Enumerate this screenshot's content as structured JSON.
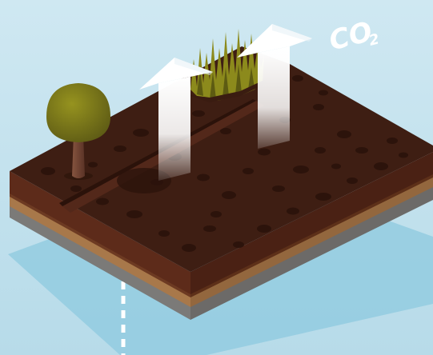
{
  "labels": {
    "co2_main": "CO",
    "co2_subscript": "2"
  },
  "colors": {
    "background_top": "#cde6f1",
    "background_bottom": "#b4d9e8",
    "water_shadow": "#86c4dc",
    "soil_top": "#3f1f14",
    "soil_dark_spots": "#2f150d",
    "soil_side_left": "#5b2a1a",
    "soil_side_right": "#4e2316",
    "sand_layer": "#a7774a",
    "rock_layer": "#7a7876",
    "tree_canopy": "#7c7a1e",
    "tree_trunk": "#6e4334",
    "grass": "#8d8a1c",
    "arrow": "#ffffff"
  },
  "icons": [
    "tree-icon",
    "grass-icon",
    "co2-arrow-icon",
    "water-table-line-icon"
  ]
}
